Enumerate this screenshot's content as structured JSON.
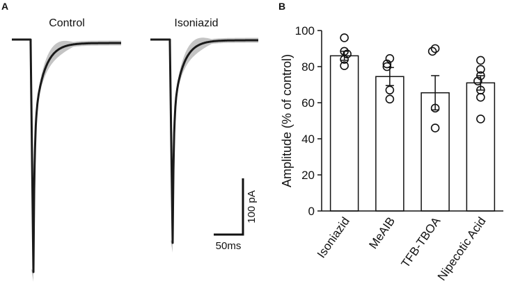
{
  "panels": {
    "a_label": "A",
    "b_label": "B"
  },
  "traces": {
    "titles": [
      "Control",
      "Isoniazid"
    ],
    "scale_bar": {
      "time_label": "50ms",
      "current_label": "100 pA"
    },
    "colors": {
      "mean": "#1a1a1a",
      "band": "#c4c4c4"
    }
  },
  "chart_data": {
    "type": "bar",
    "categories": [
      "Isoniazid",
      "MeAIB",
      "TFB-TBOA",
      "Nipecotic Acid"
    ],
    "values": [
      86,
      74.5,
      65.5,
      71
    ],
    "errors": [
      2.5,
      5,
      9.5,
      4
    ],
    "points": [
      [
        96,
        88.5,
        84,
        80.5,
        87
      ],
      [
        84.5,
        81.5,
        80,
        67,
        62
      ],
      [
        90,
        88.5,
        57,
        46
      ],
      [
        83.5,
        78.5,
        75,
        72,
        67,
        63,
        51
      ]
    ],
    "title": "",
    "xlabel": "",
    "ylabel": "Amplitude (% of control)",
    "ylim": [
      0,
      100
    ],
    "yticks": [
      0,
      20,
      40,
      60,
      80,
      100
    ],
    "grid": false,
    "bar_color": "#ffffff",
    "edge_color": "#111111"
  }
}
